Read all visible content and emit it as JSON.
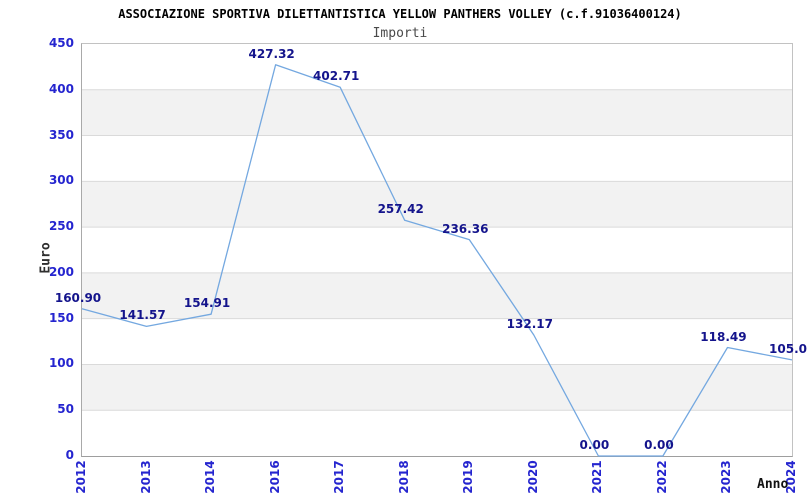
{
  "header": {
    "title": "ASSOCIAZIONE SPORTIVA DILETTANTISTICA YELLOW PANTHERS VOLLEY (c.f.91036400124)",
    "subtitle": "Importi"
  },
  "chart_data": {
    "type": "line",
    "title": "ASSOCIAZIONE SPORTIVA DILETTANTISTICA YELLOW PANTHERS VOLLEY (c.f.91036400124)",
    "subtitle": "Importi",
    "xlabel": "Anno",
    "ylabel": "Euro",
    "categories": [
      "2012",
      "2013",
      "2014",
      "2016",
      "2017",
      "2018",
      "2019",
      "2020",
      "2021",
      "2022",
      "2023",
      "2024"
    ],
    "values": [
      160.9,
      141.57,
      154.91,
      427.32,
      402.71,
      257.42,
      236.36,
      132.17,
      0.0,
      0.0,
      118.49,
      105.0
    ],
    "point_labels": [
      "160.90",
      "141.57",
      "154.91",
      "427.32",
      "402.71",
      "257.42",
      "236.36",
      "132.17",
      "0.00",
      "0.00",
      "118.49",
      "105.0"
    ],
    "ylim": [
      0,
      450
    ],
    "ytick_interval": 50,
    "yticks": [
      0,
      50,
      100,
      150,
      200,
      250,
      300,
      350,
      400,
      450
    ],
    "legend": "none",
    "grid": {
      "horizontal_gridlines": true,
      "alternating_horizontal_bands": true,
      "gray_band_top_values": [
        400,
        300,
        200,
        100
      ]
    },
    "colors": {
      "line": "#74a8e0",
      "tick_labels": "#2525cf",
      "point_labels": "#14148c",
      "band_fill": "#f2f2f2",
      "gridline": "#dadada",
      "plot_border": "#c2c2c2",
      "title": "#000000",
      "subtitle": "#4a4a4a",
      "axis_titles": "#2e2e2e"
    }
  }
}
